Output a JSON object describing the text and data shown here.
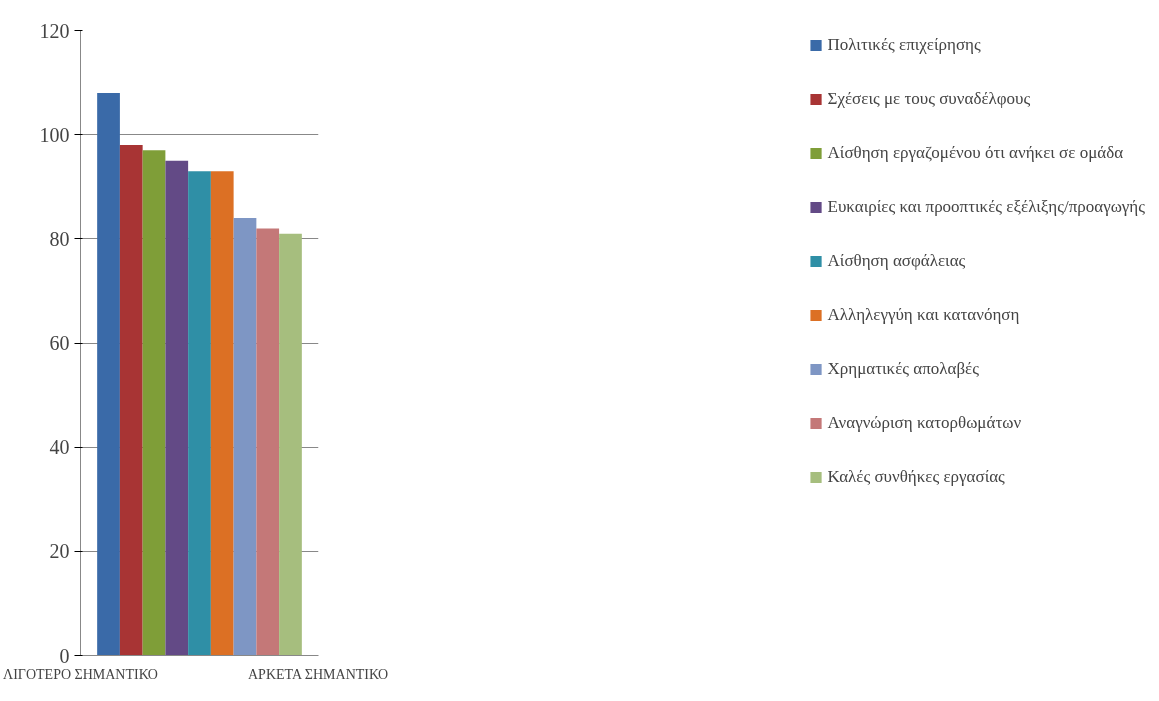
{
  "chart_data": {
    "type": "bar",
    "categories": [
      null
    ],
    "series": [
      {
        "name": "Πολιτικές επιχείρησης",
        "color": "#3a6aa8",
        "values": [
          108
        ]
      },
      {
        "name": "Σχέσεις με τους συναδέλφους",
        "color": "#a83434",
        "values": [
          98
        ]
      },
      {
        "name": "Αίσθηση εργαζομένου ότι ανήκει σε ομάδα",
        "color": "#7f9e38",
        "values": [
          97
        ]
      },
      {
        "name": "Ευκαιρίες και προοπτικές εξέλιξης/προαγωγής",
        "color": "#634a86",
        "values": [
          95
        ]
      },
      {
        "name": "Αίσθηση ασφάλειας",
        "color": "#2f8fa6",
        "values": [
          93
        ]
      },
      {
        "name": "Αλληλεγγύη και κατανόηση",
        "color": "#dc7024",
        "values": [
          93
        ]
      },
      {
        "name": "Χρηματικές απολαβές",
        "color": "#7e96c4",
        "values": [
          84
        ]
      },
      {
        "name": "Αναγνώριση κατορθωμάτων",
        "color": "#c47878",
        "values": [
          82
        ]
      },
      {
        "name": "Καλές συνθήκες εργασίας",
        "color": "#a6be7e",
        "values": [
          81
        ]
      }
    ],
    "ylim": [
      0,
      120
    ],
    "yticks": [
      0,
      20,
      40,
      60,
      80,
      100,
      120
    ],
    "grid": "y",
    "legend": "right",
    "annotations": [
      "ΛΙΓΟΤΕΡΟ ΣΗΜΑΝΤΙΚΟ",
      "ΑΡΚΕΤΑ ΣΗΜΑΝΤΙΚΟ"
    ]
  }
}
